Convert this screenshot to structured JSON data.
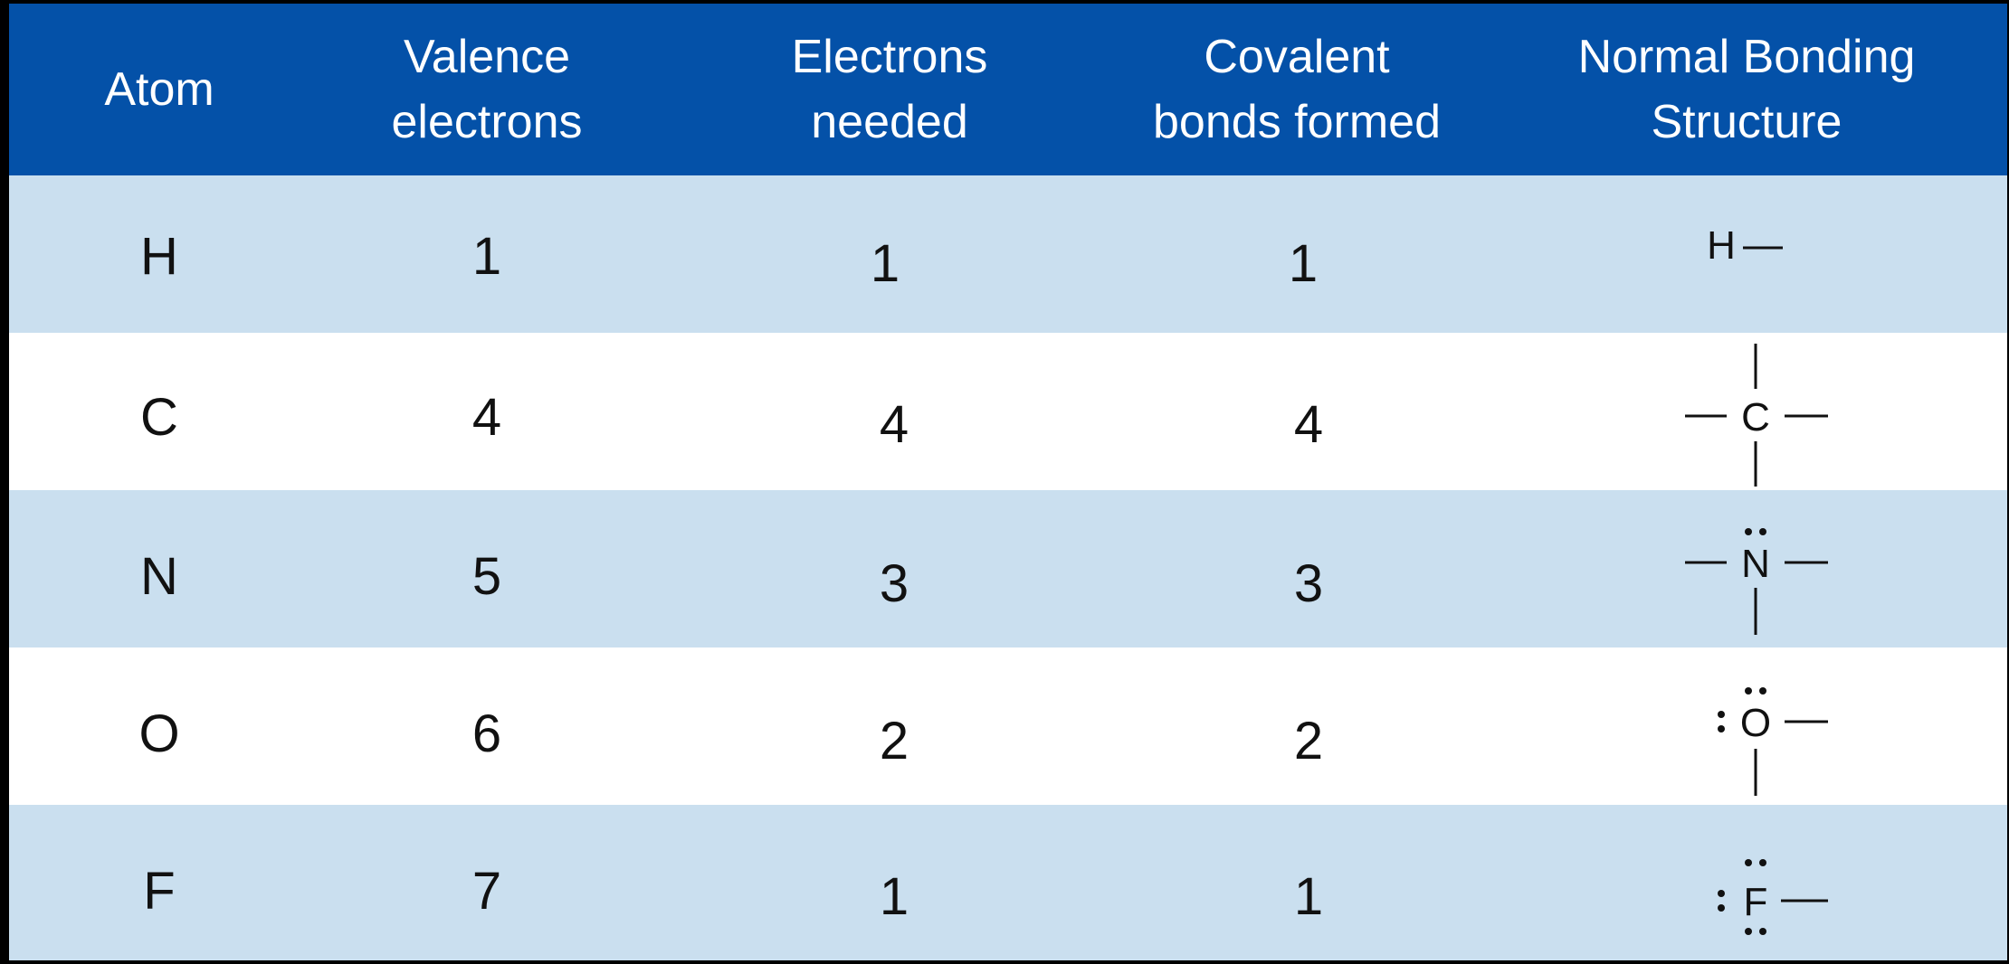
{
  "table": {
    "headers": {
      "atom": "Atom",
      "valence": [
        "Valence",
        "electrons"
      ],
      "needed": [
        "Electrons",
        "needed"
      ],
      "covalent": [
        "Covalent",
        "bonds formed"
      ],
      "structure": [
        "Normal Bonding",
        "Structure"
      ]
    },
    "rows": [
      {
        "atom": "H",
        "valence": "1",
        "needed": "1",
        "covalent": "1",
        "symbol": "H"
      },
      {
        "atom": "C",
        "valence": "4",
        "needed": "4",
        "covalent": "4",
        "symbol": "C"
      },
      {
        "atom": "N",
        "valence": "5",
        "needed": "3",
        "covalent": "3",
        "symbol": "N"
      },
      {
        "atom": "O",
        "valence": "6",
        "needed": "2",
        "covalent": "2",
        "symbol": "O"
      },
      {
        "atom": "F",
        "valence": "7",
        "needed": "1",
        "covalent": "1",
        "symbol": "F"
      }
    ]
  },
  "colors": {
    "header_bg": "#0451a8",
    "shaded_row": "#cadfef",
    "plain_row": "#ffffff",
    "frame": "#000000"
  }
}
